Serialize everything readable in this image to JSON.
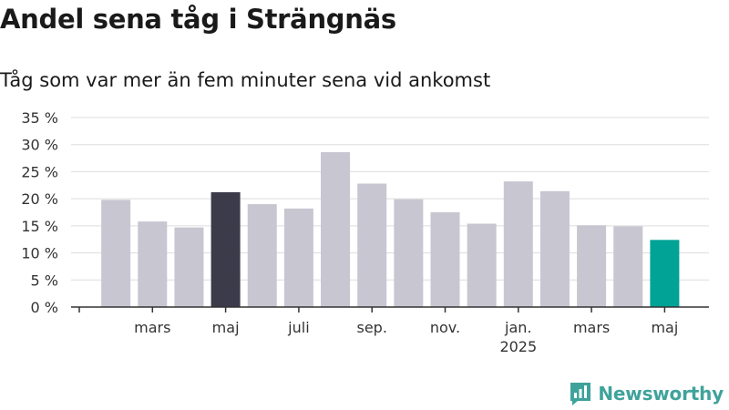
{
  "header": {
    "title": "Andel sena tåg i Strängnäs",
    "subtitle": "Tåg som var mer än fem minuter sena vid ankomst"
  },
  "brand": {
    "name": "Newsworthy",
    "color": "#3fa39b"
  },
  "chart_data": {
    "type": "bar",
    "title": "Andel sena tåg i Strängnäs",
    "subtitle": "Tåg som var mer än fem minuter sena vid ankomst",
    "xlabel": "",
    "ylabel": "",
    "ylim": [
      0,
      35
    ],
    "y_ticks": [
      0,
      5,
      10,
      15,
      20,
      25,
      30,
      35
    ],
    "y_tick_labels": [
      "0 %",
      "5 %",
      "10 %",
      "15 %",
      "20 %",
      "25 %",
      "30 %",
      "35 %"
    ],
    "x_tick_labels": [
      {
        "month_index": 2,
        "label": "mars",
        "sublabel": ""
      },
      {
        "month_index": 4,
        "label": "maj",
        "sublabel": ""
      },
      {
        "month_index": 6,
        "label": "juli",
        "sublabel": ""
      },
      {
        "month_index": 8,
        "label": "sep.",
        "sublabel": ""
      },
      {
        "month_index": 10,
        "label": "nov.",
        "sublabel": ""
      },
      {
        "month_index": 12,
        "label": "jan.",
        "sublabel": "2025"
      },
      {
        "month_index": 14,
        "label": "mars",
        "sublabel": ""
      },
      {
        "month_index": 16,
        "label": "maj",
        "sublabel": ""
      }
    ],
    "values": [
      19.8,
      15.8,
      14.7,
      21.2,
      19.0,
      18.2,
      28.6,
      22.8,
      19.9,
      17.5,
      15.4,
      23.2,
      21.4,
      15.1,
      14.9,
      12.4
    ],
    "highlight": [
      null,
      null,
      null,
      "dark",
      null,
      null,
      null,
      null,
      null,
      null,
      null,
      null,
      null,
      null,
      null,
      "accent"
    ],
    "grid": true,
    "colors": {
      "default": "#c8c6d1",
      "dark": "#3c3b4a",
      "accent": "#00a396",
      "grid": "#dddddd",
      "axis": "#333333"
    }
  }
}
